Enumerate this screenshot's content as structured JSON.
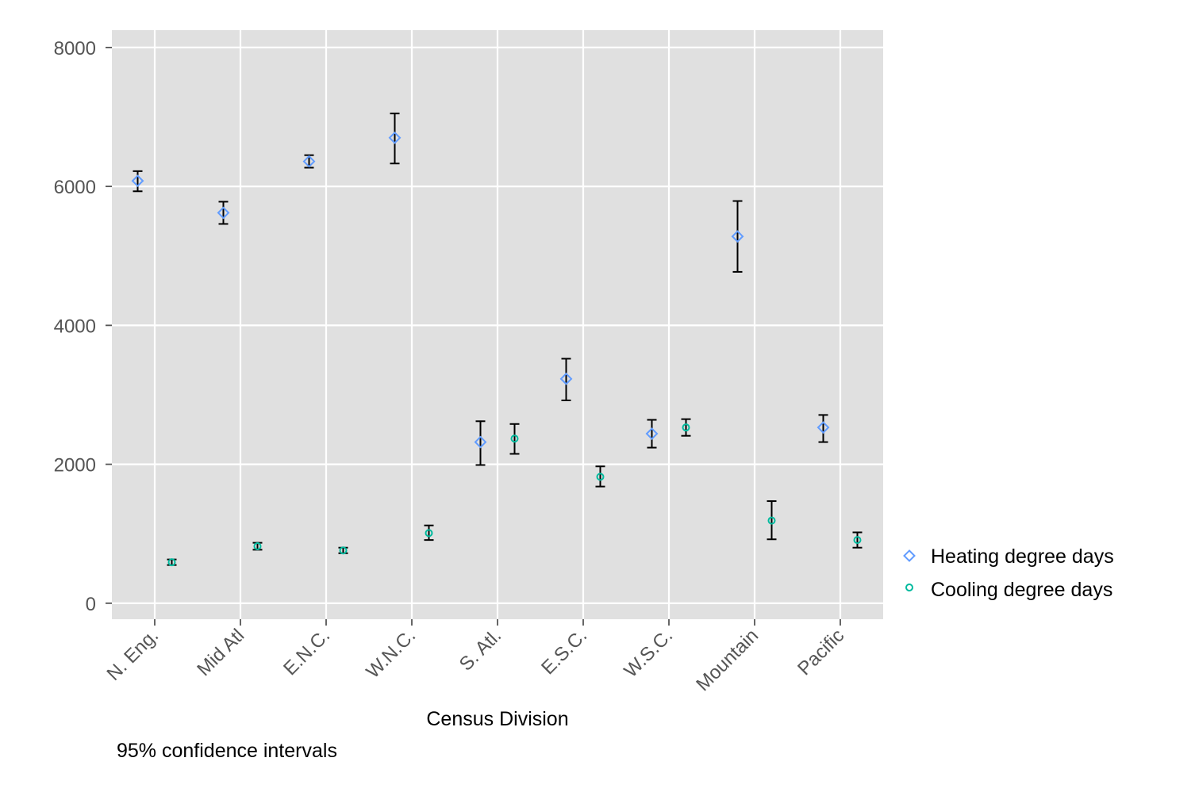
{
  "chart_data": {
    "type": "scatter",
    "title": "",
    "xlabel": "Census Division",
    "ylabel": "",
    "note": "95% confidence intervals",
    "ylim": [
      -230,
      8250
    ],
    "yticks": [
      0,
      2000,
      4000,
      6000,
      8000
    ],
    "categories": [
      "N. Eng.",
      "Mid Atl",
      "E.N.C.",
      "W.N.C.",
      "S. Atl.",
      "E.S.C.",
      "W.S.C.",
      "Mountain",
      "Pacific"
    ],
    "grid": true,
    "legend_position": "right",
    "series": [
      {
        "name": "Heating degree days",
        "marker": "diamond",
        "color": "#619CFF",
        "values": [
          6080,
          5620,
          6360,
          6700,
          2320,
          3230,
          2440,
          5280,
          2530
        ],
        "lower": [
          5930,
          5460,
          6270,
          6330,
          1990,
          2920,
          2240,
          4770,
          2320
        ],
        "upper": [
          6220,
          5780,
          6450,
          7050,
          2620,
          3520,
          2640,
          5790,
          2710
        ]
      },
      {
        "name": "Cooling degree days",
        "marker": "circle",
        "color": "#00BA9E",
        "values": [
          590,
          820,
          760,
          1010,
          2370,
          1820,
          2530,
          1190,
          910
        ],
        "lower": [
          550,
          770,
          720,
          910,
          2150,
          1680,
          2410,
          920,
          800
        ],
        "upper": [
          630,
          870,
          800,
          1120,
          2580,
          1970,
          2650,
          1470,
          1020
        ]
      }
    ],
    "error_bar_color": "#000000"
  }
}
